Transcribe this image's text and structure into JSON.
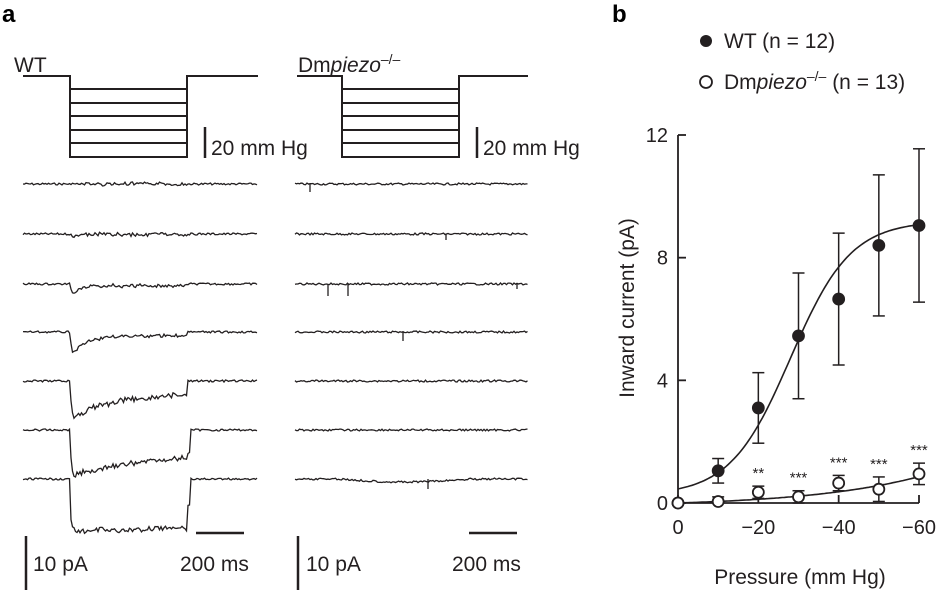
{
  "panel_a": {
    "label": "a",
    "groups": [
      {
        "name_prefix": "",
        "name_italic": "",
        "name_suffix": "WT",
        "pressure_scale": "20 mm Hg",
        "current_scale": "10 pA",
        "time_scale": "200 ms"
      },
      {
        "name_prefix": "Dm",
        "name_italic": "piezo",
        "name_suffix": "–/–",
        "pressure_scale": "20 mm Hg",
        "current_scale": "10 pA",
        "time_scale": "200 ms"
      }
    ]
  },
  "chart_data": {
    "type": "scatter",
    "panel_label": "b",
    "xlabel": "Pressure (mm Hg)",
    "ylabel": "Inward current (pA)",
    "xlim": [
      0,
      -60
    ],
    "ylim": [
      0,
      12
    ],
    "xticks": [
      {
        "v": 0,
        "t": "0"
      },
      {
        "v": -20,
        "t": "−20"
      },
      {
        "v": -40,
        "t": "−40"
      },
      {
        "v": -60,
        "t": "−60"
      }
    ],
    "yticks": [
      {
        "v": 0,
        "t": "0"
      },
      {
        "v": 4,
        "t": "4"
      },
      {
        "v": 8,
        "t": "8"
      },
      {
        "v": 12,
        "t": "12"
      }
    ],
    "grid": false,
    "legend_position": "top-left",
    "series": [
      {
        "name": "WT (n = 12)",
        "legend": {
          "prefix": "",
          "italic": "",
          "sup": "",
          "n_text": "(n = 12)"
        },
        "marker": "filled-circle",
        "x": [
          0,
          -10,
          -20,
          -30,
          -40,
          -50,
          -60
        ],
        "y": [
          0,
          1.05,
          3.1,
          5.45,
          6.65,
          8.4,
          9.05
        ],
        "err": [
          0,
          0.4,
          1.15,
          2.05,
          2.15,
          2.3,
          2.5
        ],
        "fit": {
          "model": "boltzmann",
          "top": 9.2,
          "bottom": 0.25,
          "x50": -28,
          "slope": 7.5
        }
      },
      {
        "name": "Dmpiezo–/– (n = 13)",
        "legend": {
          "prefix": "Dm",
          "italic": "piezo",
          "sup": "–/–",
          "n_text": "(n = 13)"
        },
        "marker": "open-circle",
        "x": [
          0,
          -10,
          -20,
          -30,
          -40,
          -50,
          -60
        ],
        "y": [
          0,
          0.05,
          0.35,
          0.2,
          0.65,
          0.45,
          0.95
        ],
        "err": [
          0,
          0.15,
          0.2,
          0.2,
          0.25,
          0.4,
          0.35
        ],
        "significance": [
          "",
          "",
          "**",
          "***",
          "***",
          "***",
          "***"
        ],
        "fit": {
          "model": "exponential",
          "a": 0.12,
          "k": 0.035
        }
      }
    ]
  },
  "colors": {
    "ink": "#231f20",
    "background": "#ffffff"
  }
}
